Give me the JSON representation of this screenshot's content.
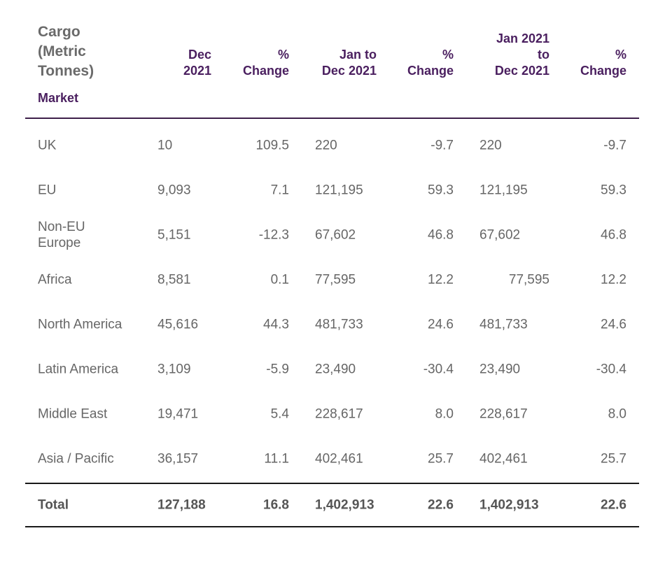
{
  "table": {
    "title": "Cargo\n(Metric\nTonnes)",
    "market_label": "Market",
    "headers": {
      "dec": "Dec\n2021",
      "pct1": "%\nChange",
      "jan": "Jan to\nDec 2021",
      "pct2": "%\nChange",
      "jan2": "Jan 2021\nto\nDec 2021",
      "pct3": "%\nChange"
    },
    "rows": [
      {
        "market": "UK",
        "dec": "10",
        "pct1": "109.5",
        "jan": "220",
        "pct2": "-9.7",
        "jan2": "220",
        "pct3": "-9.7"
      },
      {
        "market": "EU",
        "dec": "9,093",
        "pct1": "7.1",
        "jan": "121,195",
        "pct2": "59.3",
        "jan2": "121,195",
        "pct3": "59.3"
      },
      {
        "market": "Non-EU\nEurope",
        "dec": "5,151",
        "pct1": "-12.3",
        "jan": "67,602",
        "pct2": "46.8",
        "jan2": "67,602",
        "pct3": "46.8"
      },
      {
        "market": "Africa",
        "dec": "8,581",
        "pct1": "0.1",
        "jan": "77,595",
        "pct2": "12.2",
        "jan2": "77,595",
        "pct3": "12.2"
      },
      {
        "market": "North America",
        "dec": "45,616",
        "pct1": "44.3",
        "jan": "481,733",
        "pct2": "24.6",
        "jan2": "481,733",
        "pct3": "24.6"
      },
      {
        "market": "Latin America",
        "dec": "3,109",
        "pct1": "-5.9",
        "jan": "23,490",
        "pct2": "-30.4",
        "jan2": "23,490",
        "pct3": "-30.4"
      },
      {
        "market": "Middle East",
        "dec": "19,471",
        "pct1": "5.4",
        "jan": "228,617",
        "pct2": "8.0",
        "jan2": "228,617",
        "pct3": "8.0"
      },
      {
        "market": "Asia / Pacific",
        "dec": "36,157",
        "pct1": "11.1",
        "jan": "402,461",
        "pct2": "25.7",
        "jan2": "402,461",
        "pct3": "25.7"
      }
    ],
    "total": {
      "market": "Total",
      "dec": "127,188",
      "pct1": "16.8",
      "jan": "1,402,913",
      "pct2": "22.6",
      "jan2": "1,402,913",
      "pct3": "22.6"
    }
  }
}
